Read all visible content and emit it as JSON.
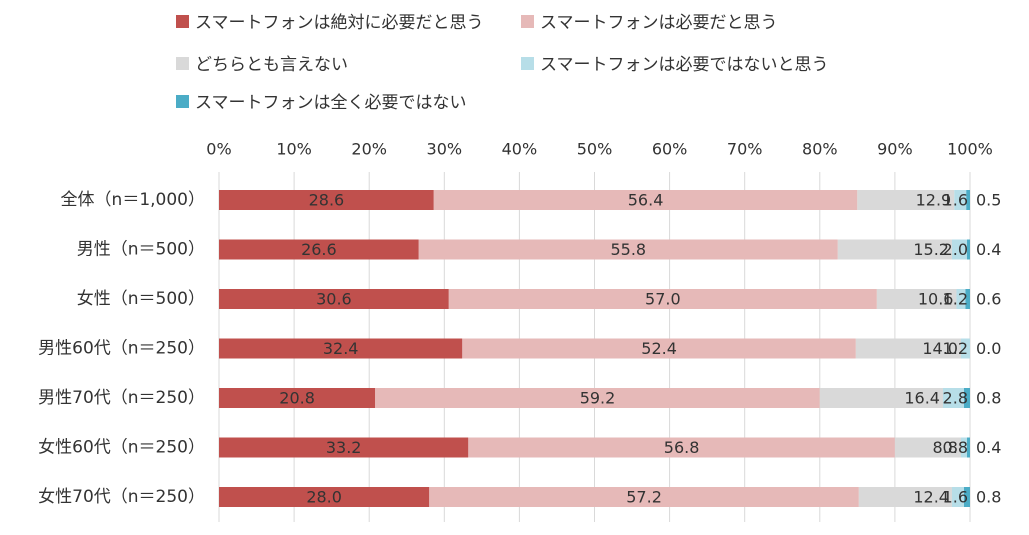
{
  "chart_data": {
    "type": "bar",
    "orientation": "horizontal",
    "stacked": true,
    "percent_stacked": true,
    "categories": [
      "全体（n＝1,000）",
      "男性（n＝500）",
      "女性（n＝500）",
      "男性60代（n＝250）",
      "男性70代（n＝250）",
      "女性60代（n＝250）",
      "女性70代（n＝250）"
    ],
    "series": [
      {
        "name": "スマートフォンは絶対に必要だと思う",
        "color": "#c0504d",
        "values": [
          28.6,
          26.6,
          30.6,
          32.4,
          20.8,
          33.2,
          28.0
        ],
        "labels": [
          "28.6",
          "26.6",
          "30.6",
          "32.4",
          "20.8",
          "33.2",
          "28.0"
        ]
      },
      {
        "name": "スマートフォンは必要だと思う",
        "color": "#e6b9b8",
        "values": [
          56.4,
          55.8,
          57.0,
          52.4,
          59.2,
          56.8,
          57.2
        ],
        "labels": [
          "56.4",
          "55.8",
          "57.0",
          "52.4",
          "59.2",
          "56.8",
          "57.2"
        ]
      },
      {
        "name": "どちらとも言えない",
        "color": "#d9d9d9",
        "values": [
          12.9,
          15.2,
          10.6,
          14.0,
          16.4,
          8.8,
          12.4
        ],
        "labels": [
          "12.9",
          "15.2",
          "10.6",
          "14.0",
          "16.4",
          "8.8",
          "12.4"
        ]
      },
      {
        "name": "スマートフォンは必要ではないと思う",
        "color": "#b7dee8",
        "values": [
          1.6,
          2.0,
          1.2,
          1.2,
          2.8,
          0.8,
          1.6
        ],
        "labels": [
          "1.6",
          "2.0",
          "1.2",
          "1.2",
          "2.8",
          "0.8",
          "1.6"
        ]
      },
      {
        "name": "スマートフォンは全く必要ではない",
        "color": "#4bacc6",
        "values": [
          0.5,
          0.4,
          0.6,
          0.0,
          0.8,
          0.4,
          0.8
        ],
        "labels": [
          "0.5",
          "0.4",
          "0.6",
          "0.0",
          "0.8",
          "0.4",
          "0.8"
        ]
      }
    ],
    "xaxis": {
      "ticks": [
        "0%",
        "10%",
        "20%",
        "30%",
        "40%",
        "50%",
        "60%",
        "70%",
        "80%",
        "90%",
        "100%"
      ],
      "range": [
        0,
        100
      ],
      "position": "top"
    },
    "legend": {
      "position": "top"
    },
    "grid": true,
    "title": ""
  }
}
